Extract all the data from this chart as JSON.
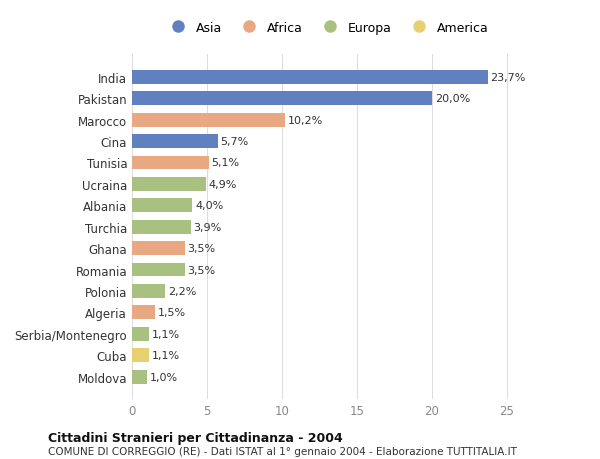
{
  "countries": [
    "India",
    "Pakistan",
    "Marocco",
    "Cina",
    "Tunisia",
    "Ucraina",
    "Albania",
    "Turchia",
    "Ghana",
    "Romania",
    "Polonia",
    "Algeria",
    "Serbia/Montenegro",
    "Cuba",
    "Moldova"
  ],
  "values": [
    23.7,
    20.0,
    10.2,
    5.7,
    5.1,
    4.9,
    4.0,
    3.9,
    3.5,
    3.5,
    2.2,
    1.5,
    1.1,
    1.1,
    1.0
  ],
  "labels": [
    "23,7%",
    "20,0%",
    "10,2%",
    "5,7%",
    "5,1%",
    "4,9%",
    "4,0%",
    "3,9%",
    "3,5%",
    "3,5%",
    "2,2%",
    "1,5%",
    "1,1%",
    "1,1%",
    "1,0%"
  ],
  "continents": [
    "Asia",
    "Asia",
    "Africa",
    "Asia",
    "Africa",
    "Europa",
    "Europa",
    "Europa",
    "Africa",
    "Europa",
    "Europa",
    "Africa",
    "Europa",
    "America",
    "Europa"
  ],
  "continent_colors": {
    "Asia": "#6080c0",
    "Africa": "#e8a882",
    "Europa": "#a8c080",
    "America": "#e8d070"
  },
  "legend_order": [
    "Asia",
    "Africa",
    "Europa",
    "America"
  ],
  "xlim": [
    0,
    26
  ],
  "xticks": [
    0,
    5,
    10,
    15,
    20,
    25
  ],
  "title_bold": "Cittadini Stranieri per Cittadinanza - 2004",
  "subtitle": "COMUNE DI CORREGGIO (RE) - Dati ISTAT al 1° gennaio 2004 - Elaborazione TUTTITALIA.IT",
  "background_color": "#ffffff",
  "grid_color": "#dddddd",
  "bar_height": 0.65
}
